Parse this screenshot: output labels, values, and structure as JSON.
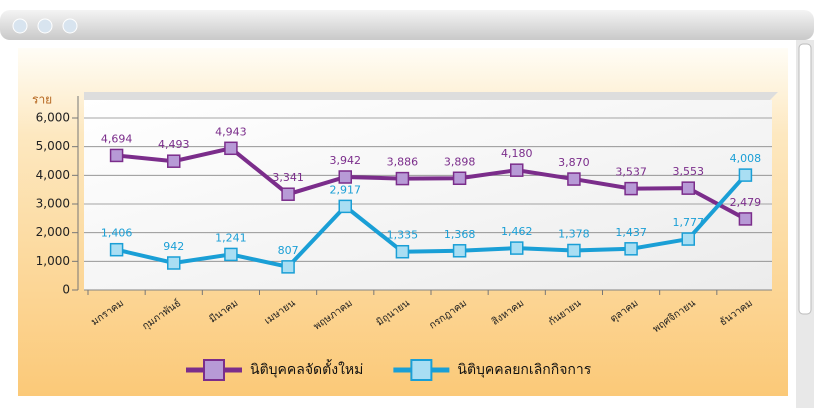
{
  "chart_data": {
    "type": "line",
    "y_label": "ราย",
    "categories": [
      "มกราคม",
      "กุมภาพันธ์",
      "มีนาคม",
      "เมษายน",
      "พฤษภาคม",
      "มิถุนายน",
      "กรกฎาคม",
      "สิงหาคม",
      "กันยายน",
      "ตุลาคม",
      "พฤศจิกายน",
      "ธันวาคม"
    ],
    "series": [
      {
        "name": "นิติบุคคลจัดตั้งใหม่",
        "color": "#7b2d8b",
        "marker_color": "#b79ad6",
        "values": [
          4694,
          4493,
          4943,
          3341,
          3942,
          3886,
          3898,
          4180,
          3870,
          3537,
          3553,
          2479
        ],
        "value_labels": [
          "4,694",
          "4,493",
          "4,943",
          "3,341",
          "3,942",
          "3,886",
          "3,898",
          "4,180",
          "3,870",
          "3,537",
          "3,553",
          "2,479"
        ]
      },
      {
        "name": "นิติบุคคลยกเลิกกิจการ",
        "color": "#1a9fd6",
        "marker_color": "#a9def3",
        "values": [
          1406,
          942,
          1241,
          807,
          2917,
          1335,
          1368,
          1462,
          1378,
          1437,
          1777,
          4008
        ],
        "value_labels": [
          "1,406",
          "942",
          "1,241",
          "807",
          "2,917",
          "1,335",
          "1,368",
          "1,462",
          "1,378",
          "1,437",
          "1,777",
          "4,008"
        ]
      }
    ],
    "ylim": [
      0,
      6000
    ],
    "yticks": [
      0,
      {
        "value": 1000,
        "label": "1,000"
      },
      {
        "value": 2000,
        "label": "2,000"
      },
      {
        "value": 3000,
        "label": "3,000"
      },
      {
        "value": 4000,
        "label": "4,000"
      },
      {
        "value": 5000,
        "label": "5,000"
      },
      {
        "value": 6000,
        "label": "6,000"
      }
    ],
    "grid": true
  }
}
